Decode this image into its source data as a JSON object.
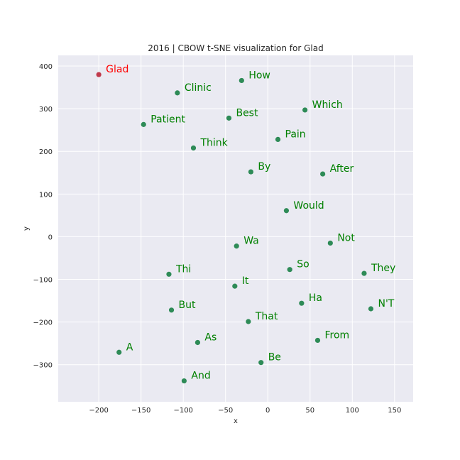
{
  "chart_data": {
    "type": "scatter",
    "title": "2016 | CBOW t-SNE visualization for Glad",
    "xlabel": "x",
    "ylabel": "y",
    "xlim": [
      -248,
      172
    ],
    "ylim": [
      -387,
      425
    ],
    "xticks": [
      -200,
      -150,
      -100,
      -50,
      0,
      50,
      100,
      150
    ],
    "yticks": [
      -300,
      -200,
      -100,
      0,
      100,
      200,
      300,
      400
    ],
    "xtick_labels": [
      "−200",
      "−150",
      "−100",
      "−50",
      "0",
      "50",
      "100",
      "150"
    ],
    "ytick_labels": [
      "−300",
      "−200",
      "−100",
      "0",
      "100",
      "200",
      "300",
      "400"
    ],
    "grid": true,
    "colors": {
      "background": "#eaeaf2",
      "grid": "#ffffff",
      "point": "#2e8b57",
      "label": "#008000",
      "target_label": "#ff0000",
      "target_point": "#c0394b"
    },
    "points": [
      {
        "label": "Glad",
        "x": -200,
        "y": 380,
        "target": true
      },
      {
        "label": "Clinic",
        "x": -107,
        "y": 337
      },
      {
        "label": "How",
        "x": -31,
        "y": 366
      },
      {
        "label": "Best",
        "x": -46,
        "y": 278
      },
      {
        "label": "Which",
        "x": 44,
        "y": 297
      },
      {
        "label": "Patient",
        "x": -147,
        "y": 263
      },
      {
        "label": "Pain",
        "x": 12,
        "y": 228
      },
      {
        "label": "Think",
        "x": -88,
        "y": 208
      },
      {
        "label": "By",
        "x": -20,
        "y": 152
      },
      {
        "label": "After",
        "x": 65,
        "y": 147
      },
      {
        "label": "Would",
        "x": 22,
        "y": 61
      },
      {
        "label": "Not",
        "x": 74,
        "y": -15
      },
      {
        "label": "Wa",
        "x": -37,
        "y": -22
      },
      {
        "label": "Thi",
        "x": -117,
        "y": -88
      },
      {
        "label": "So",
        "x": 26,
        "y": -77
      },
      {
        "label": "They",
        "x": 114,
        "y": -86
      },
      {
        "label": "It",
        "x": -39,
        "y": -116
      },
      {
        "label": "Ha",
        "x": 40,
        "y": -156
      },
      {
        "label": "But",
        "x": -114,
        "y": -172
      },
      {
        "label": "N'T",
        "x": 122,
        "y": -169
      },
      {
        "label": "That",
        "x": -23,
        "y": -199
      },
      {
        "label": "From",
        "x": 59,
        "y": -243
      },
      {
        "label": "As",
        "x": -83,
        "y": -248
      },
      {
        "label": "A",
        "x": -176,
        "y": -271
      },
      {
        "label": "Be",
        "x": -8,
        "y": -295
      },
      {
        "label": "And",
        "x": -99,
        "y": -338
      }
    ]
  }
}
